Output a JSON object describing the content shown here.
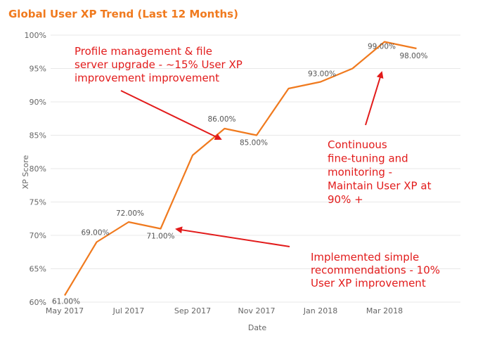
{
  "chart_data": {
    "type": "line",
    "title": "Global User XP Trend (Last 12 Months)",
    "xlabel": "Date",
    "ylabel": "XP Score",
    "ylim": [
      60,
      100
    ],
    "y_ticks": [
      "60%",
      "65%",
      "70%",
      "75%",
      "80%",
      "85%",
      "90%",
      "95%",
      "100%"
    ],
    "x": [
      "2017-05",
      "2017-06",
      "2017-07",
      "2017-08",
      "2017-09",
      "2017-10",
      "2017-11",
      "2017-12",
      "2018-01",
      "2018-02",
      "2018-03",
      "2018-04"
    ],
    "x_tick_labels": [
      {
        "x": "2017-05",
        "label": "May 2017"
      },
      {
        "x": "2017-07",
        "label": "Jul 2017"
      },
      {
        "x": "2017-09",
        "label": "Sep 2017"
      },
      {
        "x": "2017-11",
        "label": "Nov 2017"
      },
      {
        "x": "2018-01",
        "label": "Jan 2018"
      },
      {
        "x": "2018-03",
        "label": "Mar 2018"
      }
    ],
    "series": [
      {
        "values": [
          61,
          69,
          72,
          71,
          82,
          86,
          85,
          92,
          93,
          95,
          99,
          98
        ],
        "data_labels": [
          "61.00%",
          "69.00%",
          "72.00%",
          "71.00%",
          "",
          "86.00%",
          "85.00%",
          "",
          "93.00%",
          "",
          "99.00%",
          "98.00%"
        ]
      }
    ],
    "grid": true,
    "colors": {
      "line": "#f07a1e",
      "title": "#f07a1e",
      "annotation": "#e21b1b"
    },
    "annotations": [
      {
        "lines": [
          "Profile management & file",
          "server upgrade - ~15% User XP",
          "improvement improvement"
        ]
      },
      {
        "lines": [
          "Continuous",
          "fine-tuning and",
          "monitoring -",
          "Maintain User XP at",
          "90% +"
        ]
      },
      {
        "lines": [
          "Implemented simple",
          "recommendations - 10%",
          "User XP improvement"
        ]
      }
    ]
  }
}
